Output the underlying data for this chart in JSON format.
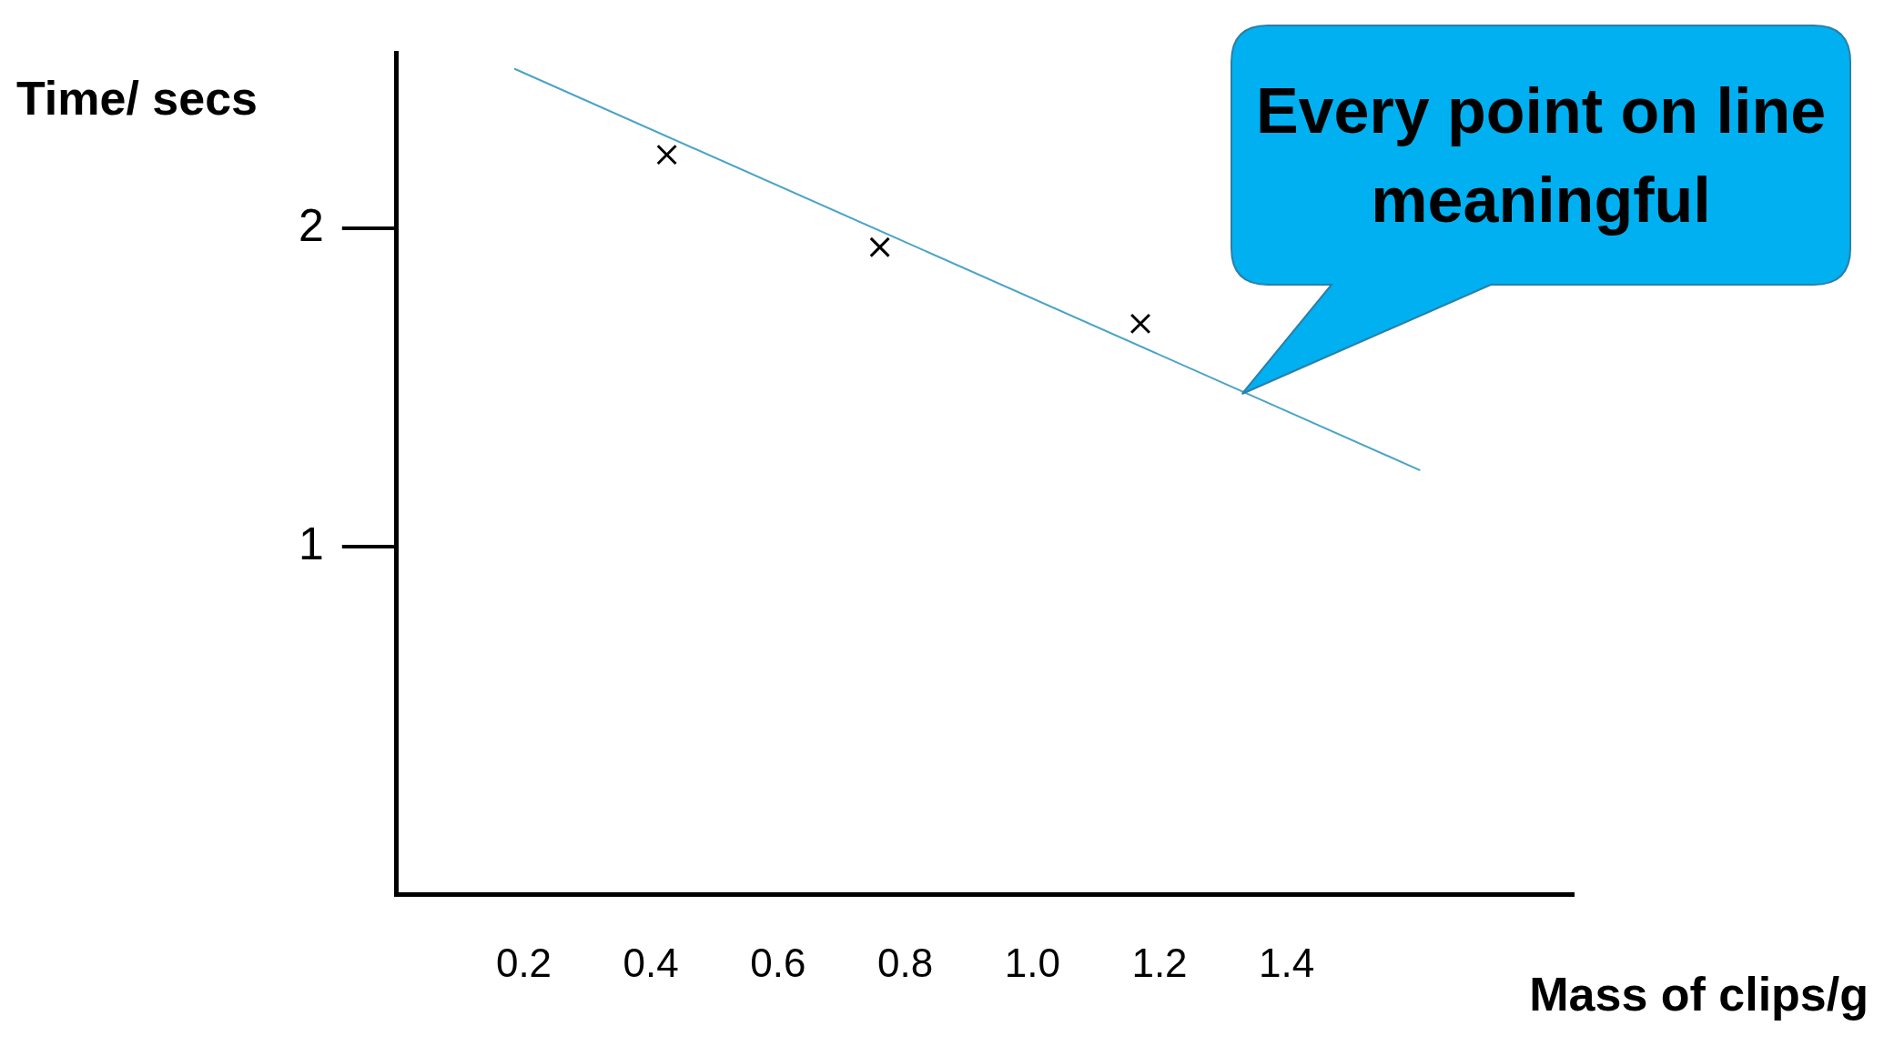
{
  "chart_data": {
    "type": "scatter",
    "xlabel": "Mass of clips/g",
    "ylabel": "Time/ secs",
    "xlim": [
      0,
      1.85
    ],
    "ylim": [
      -0.09,
      2.55
    ],
    "xticks": [
      0.2,
      0.4,
      0.6,
      0.8,
      "1.0",
      1.2,
      1.4
    ],
    "yticks": [
      1,
      2
    ],
    "grid": false,
    "legend": false,
    "marker": "cross",
    "annotations": [
      {
        "text": "Every point on line meaningful",
        "x": 1.33,
        "y": 1.48
      }
    ],
    "series": [
      {
        "type": "scatter",
        "color": "#000000",
        "x": [
          0.425,
          0.76,
          1.17
        ],
        "values": [
          2.23,
          1.94,
          1.7
        ]
      },
      {
        "type": "line",
        "color": "#4ba3c7",
        "x": [
          0.185,
          1.61
        ],
        "values": [
          2.5,
          1.24
        ],
        "marker": "none",
        "line_style": "solid"
      }
    ]
  }
}
